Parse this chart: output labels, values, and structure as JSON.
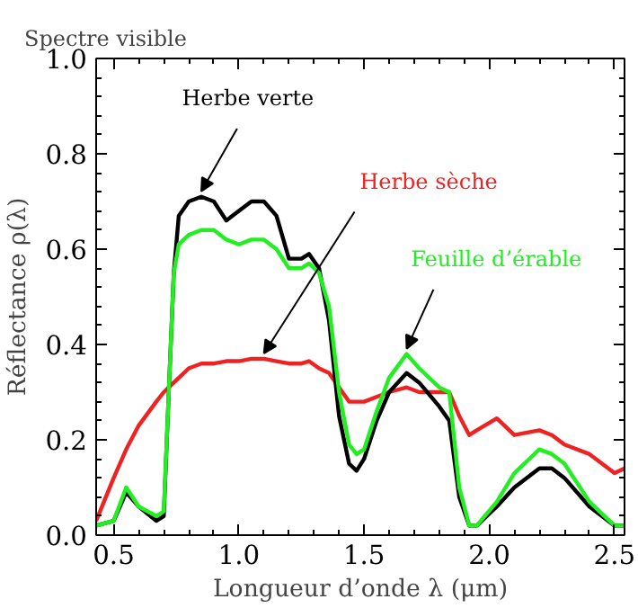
{
  "chart_data": {
    "type": "line",
    "xlabel": "Longueur d’onde λ (μm)",
    "ylabel": "Réflectance ρ(λ)",
    "x": [
      0.43,
      0.5,
      0.55,
      0.6,
      0.67,
      0.7,
      0.72,
      0.74,
      0.76,
      0.8,
      0.85,
      0.9,
      0.95,
      1.0,
      1.05,
      1.1,
      1.15,
      1.2,
      1.25,
      1.28,
      1.32,
      1.36,
      1.4,
      1.44,
      1.47,
      1.5,
      1.55,
      1.6,
      1.67,
      1.72,
      1.8,
      1.84,
      1.88,
      1.92,
      1.95,
      2.03,
      2.1,
      2.2,
      2.25,
      2.3,
      2.4,
      2.5,
      2.54
    ],
    "series": [
      {
        "color": "#ee2222",
        "values": [
          0.03,
          0.12,
          0.18,
          0.23,
          0.28,
          0.3,
          0.31,
          0.32,
          0.33,
          0.35,
          0.36,
          0.36,
          0.365,
          0.365,
          0.37,
          0.37,
          0.365,
          0.36,
          0.36,
          0.365,
          0.35,
          0.34,
          0.31,
          0.28,
          0.28,
          0.28,
          0.29,
          0.3,
          0.31,
          0.3,
          0.3,
          0.3,
          0.25,
          0.21,
          0.22,
          0.245,
          0.21,
          0.22,
          0.21,
          0.19,
          0.17,
          0.13,
          0.14
        ]
      },
      {
        "color": "#000000",
        "values": [
          0.02,
          0.03,
          0.09,
          0.06,
          0.03,
          0.04,
          0.3,
          0.55,
          0.67,
          0.7,
          0.71,
          0.7,
          0.66,
          0.68,
          0.7,
          0.7,
          0.67,
          0.58,
          0.58,
          0.59,
          0.56,
          0.45,
          0.25,
          0.15,
          0.135,
          0.16,
          0.24,
          0.3,
          0.34,
          0.32,
          0.27,
          0.24,
          0.08,
          0.02,
          0.02,
          0.06,
          0.1,
          0.14,
          0.14,
          0.12,
          0.06,
          0.02,
          0.02
        ]
      },
      {
        "color": "#22ee22",
        "values": [
          0.02,
          0.03,
          0.1,
          0.06,
          0.04,
          0.05,
          0.3,
          0.55,
          0.61,
          0.63,
          0.64,
          0.64,
          0.62,
          0.61,
          0.62,
          0.62,
          0.6,
          0.56,
          0.56,
          0.57,
          0.55,
          0.48,
          0.3,
          0.19,
          0.17,
          0.18,
          0.26,
          0.33,
          0.38,
          0.35,
          0.31,
          0.3,
          0.1,
          0.02,
          0.02,
          0.07,
          0.13,
          0.18,
          0.17,
          0.15,
          0.07,
          0.02,
          0.02
        ]
      }
    ],
    "annotations": [
      "Spectre visible",
      {
        "text": "Herbe verte",
        "x": 0.85,
        "y": 0.71
      },
      {
        "text": "Herbe sèche",
        "x": 1.1,
        "y": 0.37
      },
      {
        "text": "Feuille d’érable",
        "x": 1.67,
        "y": 0.38
      }
    ],
    "xlim": [
      0.43,
      2.54
    ],
    "ylim": [
      0,
      1.0
    ],
    "xticks": [
      0.5,
      {
        "value": 1.0,
        "label": "1.0"
      },
      1.5,
      {
        "value": 2.0,
        "label": "2.0"
      },
      2.5
    ],
    "yticks": [
      {
        "value": 0,
        "label": "0.0"
      },
      0.2,
      0.4,
      0.6,
      0.8,
      {
        "value": 1.0,
        "label": "1.0"
      }
    ],
    "grid": false
  }
}
